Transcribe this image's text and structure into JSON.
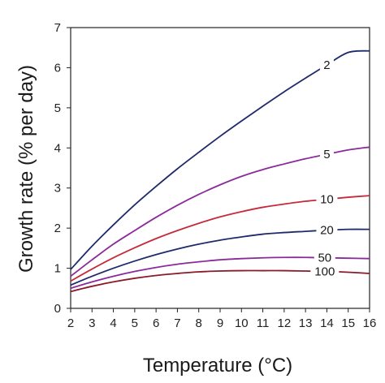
{
  "chart_data": {
    "type": "line",
    "xlabel": "Temperature (°C)",
    "ylabel": "Growth rate (% per day)",
    "xlim": [
      2,
      16
    ],
    "ylim": [
      0,
      7
    ],
    "x_ticks": [
      2,
      3,
      4,
      5,
      6,
      7,
      8,
      9,
      10,
      11,
      12,
      13,
      14,
      15,
      16
    ],
    "y_ticks": [
      0,
      1,
      2,
      3,
      4,
      5,
      6,
      7
    ],
    "grid": false,
    "legend": "inline labels",
    "x": [
      2,
      3,
      4,
      5,
      6,
      7,
      8,
      9,
      10,
      11,
      12,
      13,
      14,
      15,
      16
    ],
    "series": [
      {
        "name": "2",
        "color": "#1f2a6b",
        "label_x": 14.0,
        "values": [
          0.97,
          1.55,
          2.08,
          2.58,
          3.04,
          3.48,
          3.89,
          4.29,
          4.67,
          5.04,
          5.4,
          5.74,
          6.07,
          6.38,
          6.42
        ]
      },
      {
        "name": "5",
        "color": "#8b2a9a",
        "label_x": 14.0,
        "values": [
          0.8,
          1.21,
          1.6,
          1.94,
          2.27,
          2.57,
          2.84,
          3.08,
          3.29,
          3.46,
          3.6,
          3.73,
          3.84,
          3.95,
          4.02
        ]
      },
      {
        "name": "10",
        "color": "#c62a3a",
        "label_x": 14.0,
        "values": [
          0.68,
          0.98,
          1.26,
          1.51,
          1.74,
          1.94,
          2.12,
          2.28,
          2.41,
          2.52,
          2.6,
          2.67,
          2.72,
          2.77,
          2.81
        ]
      },
      {
        "name": "20",
        "color": "#1f2a6b",
        "label_x": 14.0,
        "values": [
          0.58,
          0.8,
          1.0,
          1.18,
          1.34,
          1.48,
          1.6,
          1.7,
          1.78,
          1.85,
          1.89,
          1.92,
          1.95,
          1.97,
          1.97
        ]
      },
      {
        "name": "50",
        "color": "#8b2a9a",
        "label_x": 13.9,
        "values": [
          0.5,
          0.66,
          0.8,
          0.92,
          1.02,
          1.1,
          1.16,
          1.21,
          1.24,
          1.26,
          1.27,
          1.27,
          1.26,
          1.25,
          1.24
        ]
      },
      {
        "name": "100",
        "color": "#8b1a2a",
        "label_x": 13.9,
        "values": [
          0.42,
          0.55,
          0.66,
          0.75,
          0.82,
          0.87,
          0.91,
          0.93,
          0.94,
          0.94,
          0.94,
          0.93,
          0.92,
          0.9,
          0.87
        ]
      }
    ]
  }
}
